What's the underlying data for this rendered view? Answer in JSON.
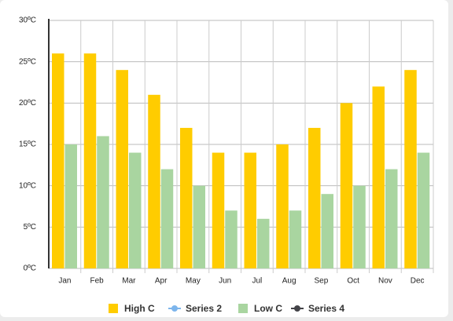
{
  "chart_data": {
    "type": "bar",
    "categories": [
      "Jan",
      "Feb",
      "Mar",
      "Apr",
      "May",
      "Jun",
      "Jul",
      "Aug",
      "Sep",
      "Oct",
      "Nov",
      "Dec"
    ],
    "series": [
      {
        "name": "High C",
        "type": "bar",
        "color": "#ffcc00",
        "values": [
          26,
          26,
          24,
          21,
          17,
          14,
          14,
          15,
          17,
          20,
          22,
          24
        ]
      },
      {
        "name": "Series 2",
        "type": "line",
        "color": "#7cb5ec",
        "values": [
          null,
          null,
          null,
          null,
          null,
          null,
          null,
          null,
          null,
          null,
          null,
          null
        ]
      },
      {
        "name": "Low C",
        "type": "bar",
        "color": "#a9d5a0",
        "values": [
          15,
          16,
          14,
          12,
          10,
          7,
          6,
          7,
          9,
          10,
          12,
          14
        ]
      },
      {
        "name": "Series 4",
        "type": "line",
        "color": "#434348",
        "values": [
          null,
          null,
          null,
          null,
          null,
          null,
          null,
          null,
          null,
          null,
          null,
          null
        ]
      }
    ],
    "ylim": [
      0,
      30
    ],
    "yticks": [
      {
        "value": 0,
        "label": "0ºC"
      },
      {
        "value": 5,
        "label": "5ºC"
      },
      {
        "value": 10,
        "label": "10ºC"
      },
      {
        "value": 15,
        "label": "15ºC"
      },
      {
        "value": 20,
        "label": "20ºC"
      },
      {
        "value": 25,
        "label": "25ºC"
      },
      {
        "value": 30,
        "label": "30ºC"
      }
    ],
    "grid": true,
    "legend": "bottom"
  }
}
